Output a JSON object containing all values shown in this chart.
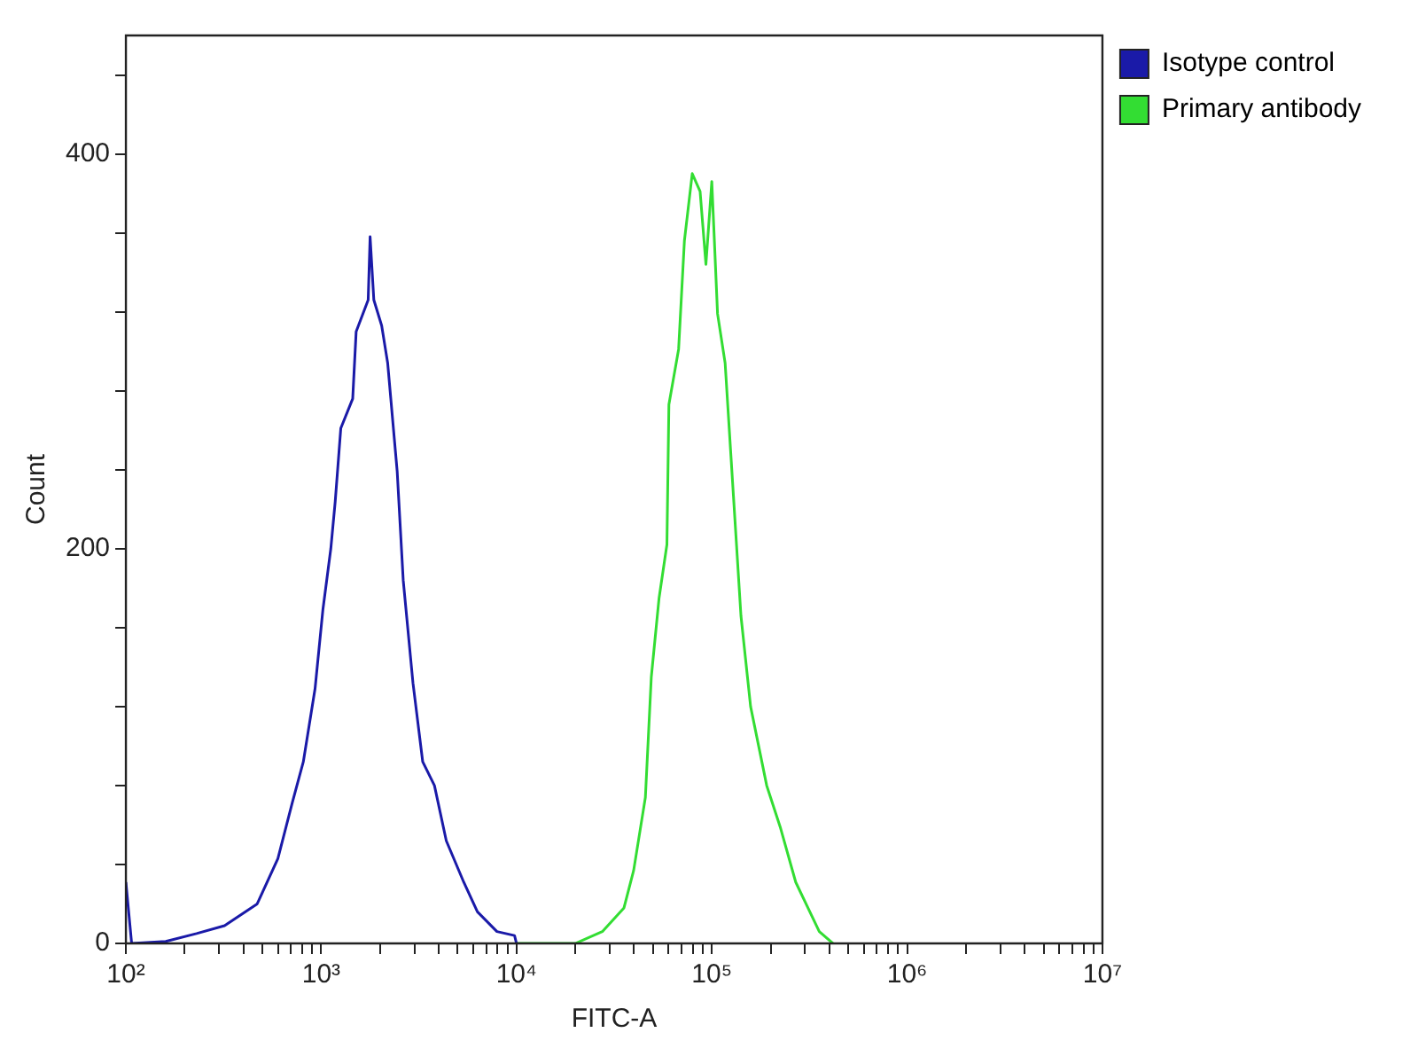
{
  "chart_data": {
    "type": "line",
    "xlabel": "FITC-A",
    "ylabel": "Count",
    "log": "x",
    "legend": "top right",
    "marker": "none",
    "line_style": "solid",
    "xlim": [
      100,
      10000000
    ],
    "xticks": [
      {
        "value": 100,
        "label": "10²"
      },
      {
        "value": 200,
        "label": null
      },
      {
        "value": 300,
        "label": null
      },
      {
        "value": 400,
        "label": null
      },
      {
        "value": 500,
        "label": null
      },
      {
        "value": 600,
        "label": null
      },
      {
        "value": 700,
        "label": null
      },
      {
        "value": 800,
        "label": null
      },
      {
        "value": 900,
        "label": null
      },
      {
        "value": 1000,
        "label": "10³"
      },
      {
        "value": 2000,
        "label": null
      },
      {
        "value": 3000,
        "label": null
      },
      {
        "value": 4000,
        "label": null
      },
      {
        "value": 5000,
        "label": null
      },
      {
        "value": 6000,
        "label": null
      },
      {
        "value": 7000,
        "label": null
      },
      {
        "value": 8000,
        "label": null
      },
      {
        "value": 9000,
        "label": null
      },
      {
        "value": 10000,
        "label": "10⁴"
      },
      {
        "value": 20000,
        "label": null
      },
      {
        "value": 30000,
        "label": null
      },
      {
        "value": 40000,
        "label": null
      },
      {
        "value": 50000,
        "label": null
      },
      {
        "value": 60000,
        "label": null
      },
      {
        "value": 70000,
        "label": null
      },
      {
        "value": 80000,
        "label": null
      },
      {
        "value": 90000,
        "label": null
      },
      {
        "value": 100000,
        "label": "10⁵"
      },
      {
        "value": 200000,
        "label": null
      },
      {
        "value": 300000,
        "label": null
      },
      {
        "value": 400000,
        "label": null
      },
      {
        "value": 500000,
        "label": null
      },
      {
        "value": 600000,
        "label": null
      },
      {
        "value": 700000,
        "label": null
      },
      {
        "value": 800000,
        "label": null
      },
      {
        "value": 900000,
        "label": null
      },
      {
        "value": 1000000,
        "label": "10⁶"
      },
      {
        "value": 2000000,
        "label": null
      },
      {
        "value": 3000000,
        "label": null
      },
      {
        "value": 4000000,
        "label": null
      },
      {
        "value": 5000000,
        "label": null
      },
      {
        "value": 6000000,
        "label": null
      },
      {
        "value": 7000000,
        "label": null
      },
      {
        "value": 8000000,
        "label": null
      },
      {
        "value": 9000000,
        "label": null
      },
      {
        "value": 10000000,
        "label": "10⁷"
      }
    ],
    "ylim": [
      0,
      460
    ],
    "yticks": [
      0,
      {
        "value": 40,
        "label": null
      },
      {
        "value": 80,
        "label": null
      },
      {
        "value": 120,
        "label": null
      },
      {
        "value": 160,
        "label": null
      },
      200,
      {
        "value": 240,
        "label": null
      },
      {
        "value": 280,
        "label": null
      },
      {
        "value": 320,
        "label": null
      },
      {
        "value": 360,
        "label": null
      },
      400,
      {
        "value": 440,
        "label": null
      }
    ],
    "series": [
      {
        "name": "Isotype control",
        "color": "#1a1aa8",
        "x": [
          100,
          107,
          160,
          230,
          320,
          470,
          600,
          710,
          810,
          930,
          1020,
          1120,
          1180,
          1260,
          1450,
          1510,
          1740,
          1780,
          1860,
          2040,
          2190,
          2450,
          2630,
          2950,
          3310,
          3800,
          4370,
          5370,
          6310,
          7940,
          9770,
          10000
        ],
        "values": [
          31,
          0,
          1,
          5,
          9,
          20,
          43,
          71,
          92,
          129,
          169,
          200,
          224,
          261,
          276,
          310,
          326,
          358,
          326,
          313,
          294,
          239,
          184,
          132,
          92,
          80,
          52,
          31,
          16,
          6,
          4,
          0
        ]
      },
      {
        "name": "Primary antibody",
        "color": "#33dd33",
        "x": [
          10000,
          20000,
          27500,
          35500,
          39800,
          45700,
          49000,
          53700,
          58900,
          60300,
          67600,
          72400,
          79400,
          87100,
          93300,
          100000,
          107000,
          117000,
          129000,
          141000,
          158000,
          191000,
          224000,
          269000,
          355000,
          417000
        ],
        "values": [
          0,
          0,
          6,
          18,
          37,
          74,
          135,
          175,
          202,
          273,
          301,
          356,
          390,
          381,
          344,
          386,
          319,
          294,
          227,
          166,
          120,
          80,
          59,
          31,
          6,
          0
        ]
      }
    ]
  }
}
